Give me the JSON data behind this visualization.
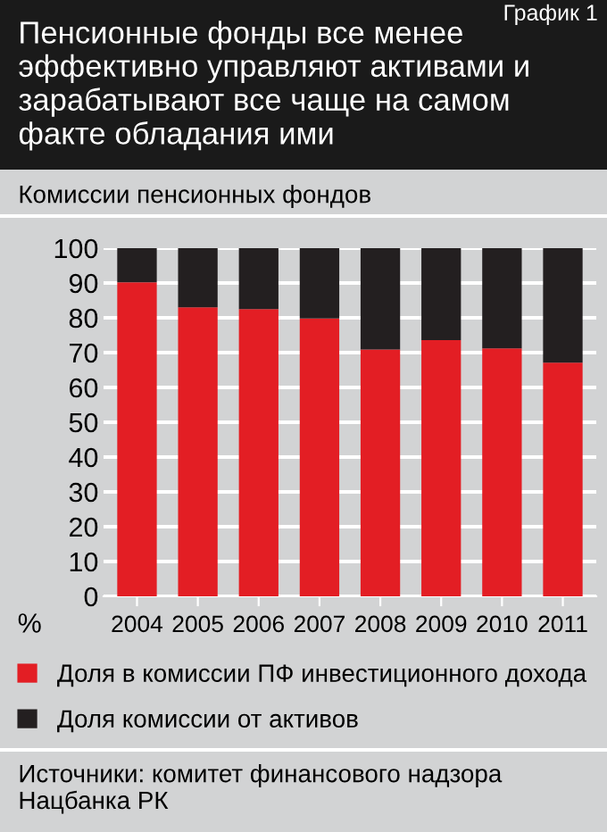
{
  "chart_data": {
    "type": "bar",
    "stacked": true,
    "title": "Пенсионные фонды все менее эффективно управляют активами и зарабатывают все чаще на самом факте обладания ими",
    "subtitle": "Комиссии пенсионных фондов",
    "ylabel": "%",
    "categories": [
      "2004",
      "2005",
      "2006",
      "2007",
      "2008",
      "2009",
      "2010",
      "2011"
    ],
    "series": [
      {
        "name": "Доля в комиссии ПФ инвестиционного дохода",
        "color": "#e31e24",
        "values": [
          90.2,
          83.0,
          82.5,
          79.8,
          70.9,
          73.6,
          71.2,
          67.1
        ]
      },
      {
        "name": "Доля комиссии от активов",
        "color": "#231f20",
        "values": [
          9.8,
          17.0,
          17.5,
          20.2,
          29.1,
          26.4,
          28.8,
          32.9
        ]
      }
    ],
    "ylim": [
      0,
      100
    ],
    "yticks": [
      0,
      10,
      20,
      30,
      40,
      50,
      60,
      70,
      80,
      90,
      100
    ],
    "grid": "y",
    "legend": "bottom",
    "annotations": [
      "График 1",
      "Источники: комитет финансового надзора Нацбанка РК"
    ]
  }
}
